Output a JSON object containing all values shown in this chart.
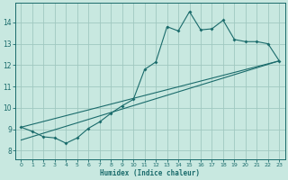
{
  "xlabel": "Humidex (Indice chaleur)",
  "ylabel": "",
  "xlim": [
    -0.5,
    23.5
  ],
  "ylim": [
    7.6,
    14.9
  ],
  "xticks": [
    0,
    1,
    2,
    3,
    4,
    5,
    6,
    7,
    8,
    9,
    10,
    11,
    12,
    13,
    14,
    15,
    16,
    17,
    18,
    19,
    20,
    21,
    22,
    23
  ],
  "yticks": [
    8,
    9,
    10,
    11,
    12,
    13,
    14
  ],
  "bg_color": "#c8e8e0",
  "line_color": "#1a6b6b",
  "grid_color": "#a0c8c0",
  "line1_x": [
    0,
    1,
    2,
    3,
    4,
    5,
    6,
    7,
    8,
    9,
    10,
    11,
    12,
    13,
    14,
    15,
    16,
    17,
    18,
    19,
    20,
    21,
    22,
    23
  ],
  "line1_y": [
    9.1,
    8.9,
    8.65,
    8.6,
    8.35,
    8.6,
    9.05,
    9.35,
    9.75,
    10.1,
    10.4,
    11.8,
    12.15,
    13.8,
    13.6,
    14.5,
    13.65,
    13.7,
    14.1,
    13.2,
    13.1,
    13.1,
    13.0,
    12.2
  ],
  "line2_x": [
    0,
    23
  ],
  "line2_y": [
    9.1,
    12.2
  ],
  "line3_x": [
    0,
    23
  ],
  "line3_y": [
    8.5,
    12.2
  ]
}
